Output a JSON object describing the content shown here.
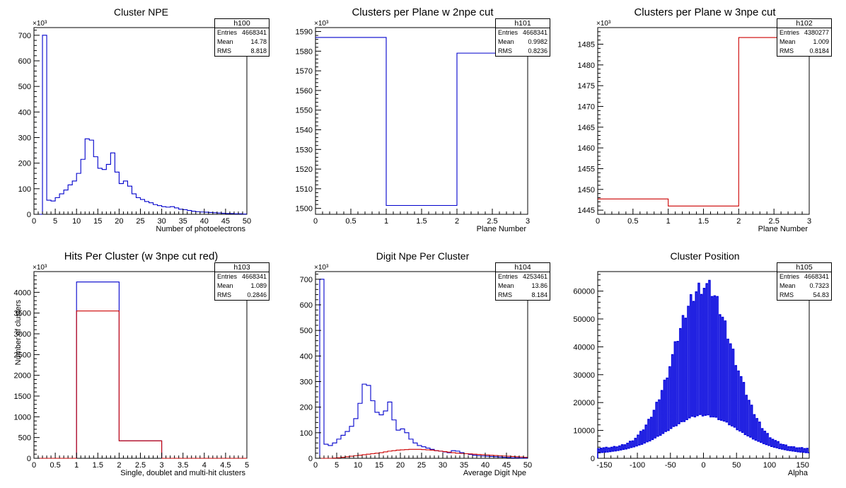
{
  "chart_data": [
    {
      "type": "bar",
      "title": "Cluster NPE",
      "xlabel": "Number of photoelectrons",
      "ylabel": "",
      "exponent": "×10³",
      "xlim": [
        0,
        50
      ],
      "ylim": [
        0,
        730
      ],
      "xticks": [
        0,
        5,
        10,
        15,
        20,
        25,
        30,
        35,
        40,
        45,
        50
      ],
      "yticks": [
        0,
        100,
        200,
        300,
        400,
        500,
        600,
        700
      ],
      "stats": {
        "name": "h100",
        "rows": [
          [
            "Entries",
            "4668341"
          ],
          [
            "Mean",
            "14.78"
          ],
          [
            "RMS",
            "8.818"
          ]
        ]
      },
      "series": [
        {
          "color": "#0000cc",
          "bin_width": 1,
          "x_start": 1,
          "values": [
            0,
            700,
            55,
            52,
            65,
            80,
            95,
            115,
            130,
            160,
            215,
            295,
            290,
            225,
            180,
            175,
            195,
            240,
            165,
            120,
            130,
            110,
            80,
            65,
            58,
            50,
            45,
            38,
            34,
            30,
            28,
            30,
            25,
            20,
            18,
            15,
            12,
            10,
            9,
            8,
            7,
            6,
            5,
            4,
            3,
            3,
            2,
            2,
            1
          ]
        }
      ]
    },
    {
      "type": "bar",
      "title": "Clusters per Plane w 2npe cut",
      "xlabel": "Plane Number",
      "ylabel": "",
      "exponent": "×10³",
      "xlim": [
        0,
        3
      ],
      "ylim": [
        1497,
        1592
      ],
      "xticks": [
        0,
        0.5,
        1,
        1.5,
        2,
        2.5,
        3
      ],
      "yticks": [
        1500,
        1510,
        1520,
        1530,
        1540,
        1550,
        1560,
        1570,
        1580,
        1590
      ],
      "stats": {
        "name": "h101",
        "rows": [
          [
            "Entries",
            "4668341"
          ],
          [
            "Mean",
            "0.9982"
          ],
          [
            "RMS",
            "0.8236"
          ]
        ]
      },
      "series": [
        {
          "color": "#0000cc",
          "bin_width": 1,
          "x_start": 0,
          "values": [
            1587,
            1501.5,
            1579
          ]
        }
      ]
    },
    {
      "type": "bar",
      "title": "Clusters per Plane w 3npe cut",
      "xlabel": "Plane Number",
      "ylabel": "",
      "exponent": "×10³",
      "xlim": [
        0,
        3
      ],
      "ylim": [
        1444,
        1489
      ],
      "xticks": [
        0,
        0.5,
        1,
        1.5,
        2,
        2.5,
        3
      ],
      "yticks": [
        1445,
        1450,
        1455,
        1460,
        1465,
        1470,
        1475,
        1480,
        1485
      ],
      "stats": {
        "name": "h102",
        "rows": [
          [
            "Entries",
            "4380277"
          ],
          [
            "Mean",
            "1.009"
          ],
          [
            "RMS",
            "0.8184"
          ]
        ]
      },
      "series": [
        {
          "color": "#cc0000",
          "bin_width": 1,
          "x_start": 0,
          "values": [
            1447.7,
            1446,
            1486.6
          ]
        }
      ]
    },
    {
      "type": "bar",
      "title": "Hits Per Cluster (w 3npe cut red)",
      "xlabel": "Single, doublet and multi-hit clusters",
      "ylabel": "Number of clusters",
      "exponent": "×10³",
      "xlim": [
        0,
        5
      ],
      "ylim": [
        0,
        4500
      ],
      "xticks": [
        0,
        0.5,
        1,
        1.5,
        2,
        2.5,
        3,
        3.5,
        4,
        4.5,
        5
      ],
      "yticks": [
        0,
        500,
        1000,
        1500,
        2000,
        2500,
        3000,
        3500,
        4000
      ],
      "stats": {
        "name": "h103",
        "rows": [
          [
            "Entries",
            "4668341"
          ],
          [
            "Mean",
            "1.089"
          ],
          [
            "RMS",
            "0.2846"
          ]
        ]
      },
      "series": [
        {
          "color": "#0000cc",
          "bin_width": 1,
          "x_start": 0,
          "values": [
            0,
            4250,
            420,
            0,
            0
          ]
        },
        {
          "color": "#cc0000",
          "bin_width": 1,
          "x_start": 0,
          "values": [
            0,
            3550,
            420,
            0,
            0
          ]
        }
      ]
    },
    {
      "type": "bar",
      "title": "Digit Npe Per Cluster",
      "xlabel": "Average Digit Npe",
      "ylabel": "",
      "exponent": "×10³",
      "xlim": [
        0,
        50
      ],
      "ylim": [
        0,
        730
      ],
      "xticks": [
        0,
        5,
        10,
        15,
        20,
        25,
        30,
        35,
        40,
        45,
        50
      ],
      "yticks": [
        0,
        100,
        200,
        300,
        400,
        500,
        600,
        700
      ],
      "stats": {
        "name": "h104",
        "rows": [
          [
            "Entries",
            "4253461"
          ],
          [
            "Mean",
            "13.86"
          ],
          [
            "RMS",
            "8.184"
          ]
        ]
      },
      "series": [
        {
          "color": "#0000cc",
          "bin_width": 1,
          "x_start": 1,
          "values": [
            700,
            55,
            50,
            60,
            75,
            90,
            105,
            125,
            155,
            215,
            290,
            285,
            225,
            180,
            170,
            185,
            220,
            150,
            110,
            115,
            100,
            75,
            60,
            50,
            45,
            40,
            35,
            30,
            28,
            25,
            22,
            30,
            28,
            22,
            18,
            15,
            12,
            10,
            9,
            8,
            7,
            6,
            5,
            4,
            3,
            2,
            2,
            1,
            1
          ]
        },
        {
          "color": "#cc0000",
          "bin_width": 1,
          "x_start": 1,
          "values": [
            0,
            0,
            0,
            1,
            2,
            4,
            6,
            8,
            10,
            12,
            14,
            16,
            18,
            20,
            22,
            25,
            28,
            30,
            32,
            33,
            34,
            35,
            35,
            35,
            34,
            33,
            32,
            30,
            28,
            26,
            24,
            22,
            20,
            19,
            18,
            17,
            16,
            15,
            14,
            13,
            12,
            11,
            10,
            9,
            8,
            7,
            6,
            5,
            4
          ]
        }
      ]
    },
    {
      "type": "bar",
      "title": "Cluster Position",
      "xlabel": "Alpha",
      "ylabel": "",
      "exponent": "",
      "xlim": [
        -160,
        160
      ],
      "ylim": [
        0,
        67000
      ],
      "xticks": [
        -150,
        -100,
        -50,
        0,
        50,
        100,
        150
      ],
      "yticks": [
        0,
        10000,
        20000,
        30000,
        40000,
        50000,
        60000
      ],
      "stats": {
        "name": "h105",
        "rows": [
          [
            "Entries",
            "4668341"
          ],
          [
            "Mean",
            "0.7323"
          ],
          [
            "RMS",
            "54.83"
          ]
        ]
      },
      "series": [
        {
          "color": "#0000dd",
          "bin_width": 2,
          "x_start": -160,
          "envelope": {
            "peak": 62000,
            "sigma": 44,
            "base": 3500,
            "valley_frac": 0.12,
            "valley_floor": 7000,
            "valley_sigma": 70
          }
        }
      ]
    }
  ]
}
